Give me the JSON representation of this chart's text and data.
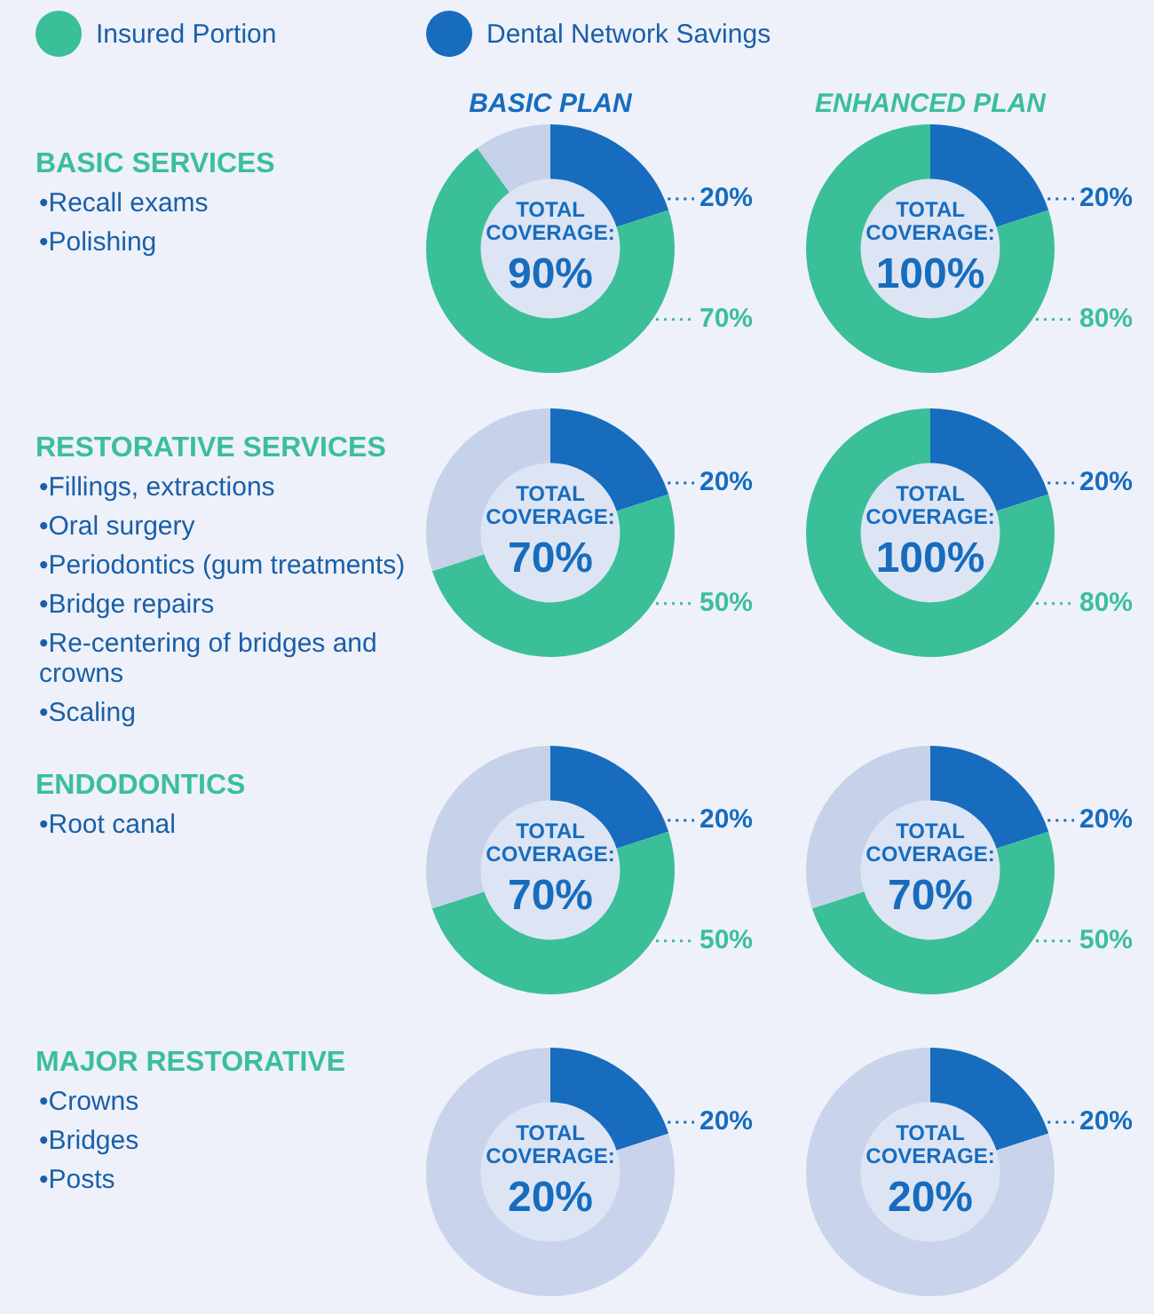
{
  "chart_data": [
    {
      "type": "other",
      "title": "BASIC SERVICES",
      "annotations": [
        "•Recall exams",
        "•Polishing"
      ]
    },
    {
      "type": "donut",
      "title": "BASIC PLAN",
      "legend": "top",
      "categories": [
        "Dental Network Savings",
        "Insured Portion",
        null
      ],
      "values": [
        20,
        70,
        10
      ],
      "colors": [
        "#176cbe",
        "#3bbf98",
        "#c6d1ea"
      ],
      "value_labels": [
        "20%",
        "70%",
        null
      ],
      "annotations": [
        "TOTAL COVERAGE:",
        "90%"
      ]
    },
    {
      "type": "donut",
      "title": "ENHANCED PLAN",
      "categories": [
        null,
        null
      ],
      "values": [
        20,
        80
      ],
      "colors": [
        "#176cbe",
        "#3bbf98"
      ],
      "value_labels": [
        "20%",
        "80%"
      ],
      "annotations": [
        "TOTAL COVERAGE:",
        "100%"
      ]
    },
    {
      "type": "other",
      "title": "RESTORATIVE SERVICES",
      "annotations": [
        "•Fillings, extractions",
        "•Oral surgery",
        "•Periodontics (gum treatments)",
        "•Bridge repairs",
        "•Re-centering of bridges and crowns",
        "•Scaling"
      ]
    },
    {
      "type": "donut",
      "categories": [
        null,
        null,
        null
      ],
      "values": [
        20,
        50,
        30
      ],
      "colors": [
        "#176cbe",
        "#3bbf98",
        "#c6d1ea"
      ],
      "value_labels": [
        "20%",
        "50%",
        null
      ],
      "annotations": [
        "TOTAL COVERAGE:",
        "70%"
      ]
    },
    {
      "type": "donut",
      "categories": [
        null,
        null
      ],
      "values": [
        20,
        80
      ],
      "colors": [
        "#176cbe",
        "#3bbf98"
      ],
      "value_labels": [
        "20%",
        "80%"
      ],
      "annotations": [
        "TOTAL COVERAGE:",
        "100%"
      ]
    },
    {
      "type": "other",
      "title": "ENDODONTICS",
      "annotations": [
        "•Root canal"
      ]
    },
    {
      "type": "donut",
      "categories": [
        null,
        null,
        null
      ],
      "values": [
        20,
        50,
        30
      ],
      "colors": [
        "#176cbe",
        "#3bbf98",
        "#c6d1ea"
      ],
      "value_labels": [
        "20%",
        "50%",
        null
      ],
      "annotations": [
        "TOTAL COVERAGE:",
        "70%"
      ]
    },
    {
      "type": "donut",
      "categories": [
        null,
        null,
        null
      ],
      "values": [
        20,
        50,
        30
      ],
      "colors": [
        "#176cbe",
        "#3bbf98",
        "#c6d1ea"
      ],
      "value_labels": [
        "20%",
        "50%",
        null
      ],
      "annotations": [
        "TOTAL COVERAGE:",
        "70%"
      ]
    },
    {
      "type": "other",
      "title": "MAJOR RESTORATIVE",
      "annotations": [
        "•Crowns",
        "•Bridges",
        "•Posts"
      ]
    },
    {
      "type": "donut",
      "categories": [
        null,
        null
      ],
      "values": [
        20,
        80
      ],
      "colors": [
        "#176cbe",
        "#c9d4ec"
      ],
      "value_labels": [
        "20%",
        null
      ],
      "annotations": [
        "TOTAL COVERAGE:",
        "20%"
      ]
    },
    {
      "type": "donut",
      "categories": [
        null,
        null
      ],
      "values": [
        20,
        80
      ],
      "colors": [
        "#176cbe",
        "#c9d4ec"
      ],
      "value_labels": [
        "20%",
        null
      ],
      "annotations": [
        "TOTAL COVERAGE:",
        "20%"
      ]
    }
  ]
}
